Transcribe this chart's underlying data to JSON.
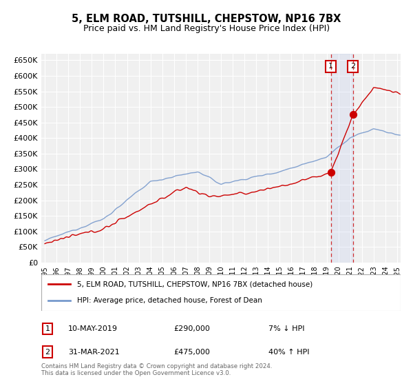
{
  "title": "5, ELM ROAD, TUTSHILL, CHEPSTOW, NP16 7BX",
  "subtitle": "Price paid vs. HM Land Registry's House Price Index (HPI)",
  "ylim": [
    0,
    670000
  ],
  "yticks": [
    0,
    50000,
    100000,
    150000,
    200000,
    250000,
    300000,
    350000,
    400000,
    450000,
    500000,
    550000,
    600000,
    650000
  ],
  "xlim_start": 1994.7,
  "xlim_end": 2025.3,
  "purchase1_date": 2019.36,
  "purchase1_price": 290000,
  "purchase2_date": 2021.25,
  "purchase2_price": 475000,
  "hpi_color": "#7799cc",
  "price_color": "#cc0000",
  "background_color": "#ffffff",
  "plot_bg_color": "#f0f0f0",
  "grid_color": "#ffffff",
  "legend1": "5, ELM ROAD, TUTSHILL, CHEPSTOW, NP16 7BX (detached house)",
  "legend2": "HPI: Average price, detached house, Forest of Dean",
  "footnote": "Contains HM Land Registry data © Crown copyright and database right 2024.\nThis data is licensed under the Open Government Licence v3.0."
}
